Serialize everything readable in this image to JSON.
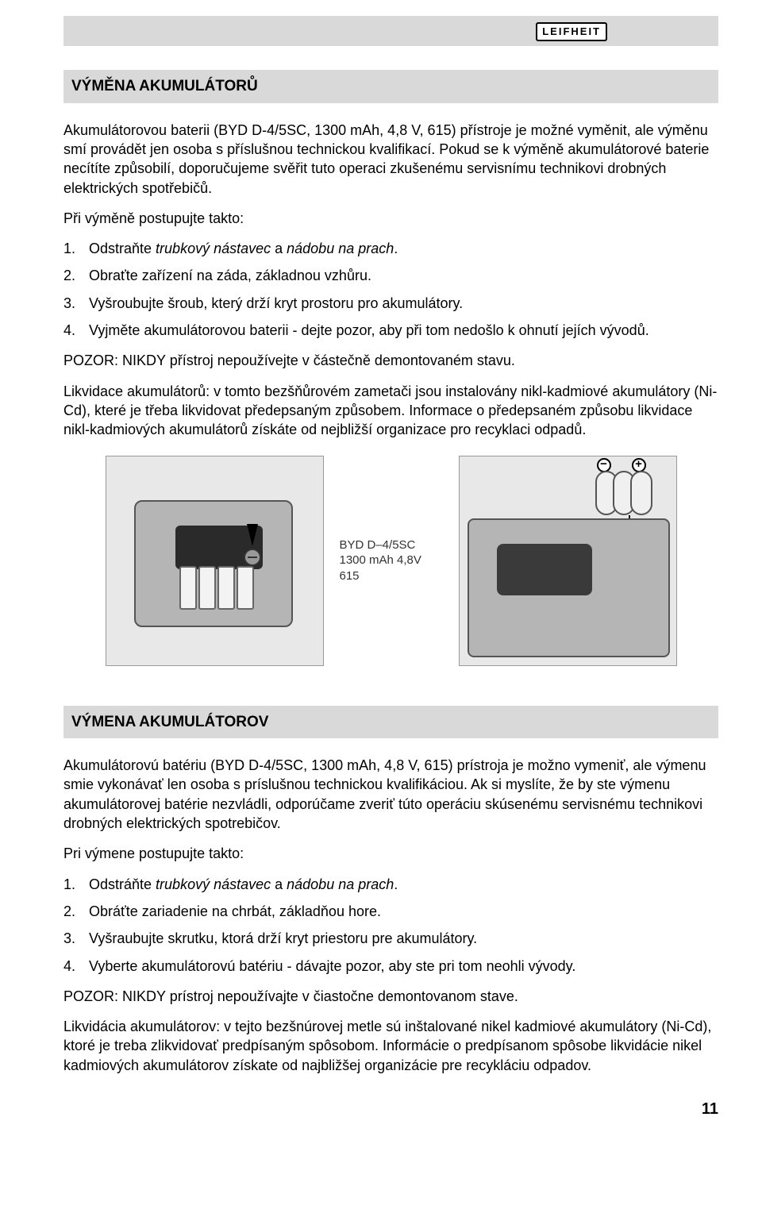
{
  "brand": "LEIFHEIT",
  "page_number": "11",
  "diagram_label_line1": "BYD D–4/5SC",
  "diagram_label_line2": "1300 mAh 4,8V 615",
  "colors": {
    "section_bg": "#d9d9d9",
    "page_bg": "#ffffff",
    "text": "#000000",
    "diagram_bg": "#e8e8e8",
    "diagram_body": "#b5b5b5"
  },
  "cz": {
    "title": "VÝMĚNA AKUMULÁTORŮ",
    "p1": "Akumulátorovou baterii (BYD D-4/5SC, 1300 mAh, 4,8 V, 615) přístroje je možné vyměnit, ale výměnu smí provádět jen osoba s příslušnou technickou kvalifikací. Pokud se k výměně akumulátorové baterie necítíte způsobilí, doporučujeme svěřit tuto operaci zkušenému servisnímu technikovi drobných elektrických spotřebičů.",
    "p2": "Při výměně postupujte takto:",
    "steps": [
      {
        "n": "1.",
        "pre": "Odstraňte ",
        "it": "trubkový nástavec",
        "mid": " a ",
        "it2": "nádobu na prach",
        "post": "."
      },
      {
        "n": "2.",
        "text": "Obraťte zařízení na záda, základnou vzhůru."
      },
      {
        "n": "3.",
        "text": "Vyšroubujte šroub, který drží kryt prostoru pro akumulátory."
      },
      {
        "n": "4.",
        "text": "Vyjměte akumulátorovou baterii - dejte pozor, aby při tom nedošlo k ohnutí jejích vývodů."
      }
    ],
    "p3": "POZOR: NIKDY přístroj nepoužívejte v částečně demontovaném stavu.",
    "p4": "Likvidace akumulátorů: v tomto bezšňůrovém zametači jsou instalovány nikl-kadmiové akumulátory (Ni-Cd), které je třeba likvidovat předepsaným způsobem. Informace o předepsaném způsobu likvidace nikl-kadmiových akumulátorů získáte od nejbližší organizace pro recyklaci odpadů."
  },
  "sk": {
    "title": "VÝMENA AKUMULÁTOROV",
    "p1": "Akumulátorovú batériu (BYD D-4/5SC, 1300 mAh, 4,8 V, 615) prístroja je možno vymeniť, ale výmenu smie vykonávať len  osoba s príslušnou technickou kvalifikáciou. Ak si myslíte, že by ste výmenu akumulátorovej batérie nezvládli, odporúčame zveriť túto operáciu skúsenému servisnému technikovi drobných elektrických spotrebičov.",
    "p2": "Pri výmene postupujte takto:",
    "steps": [
      {
        "n": "1.",
        "pre": "Odstráňte ",
        "it": "trubkový nástavec",
        "mid": " a ",
        "it2": "nádobu na prach",
        "post": "."
      },
      {
        "n": "2.",
        "text": "Obráťte zariadenie na chrbát, základňou hore."
      },
      {
        "n": "3.",
        "text": "Vyšraubujte skrutku, ktorá drží kryt priestoru pre akumulátory."
      },
      {
        "n": "4.",
        "text": "Vyberte akumulátorovú batériu - dávajte pozor, aby ste pri tom neohli vývody."
      }
    ],
    "p3": "POZOR: NIKDY prístroj nepoužívajte v čiastočne demontovanom stave.",
    "p4": "Likvidácia akumulátorov: v tejto bezšnúrovej metle sú inštalované nikel kadmiové akumulátory (Ni-Cd), ktoré je treba zlikvidovať predpísaným spôsobom. Informácie o predpísanom spôsobe likvidácie nikel kadmiových akumulátorov získate od najbližšej organizácie pre recykláciu odpadov."
  }
}
